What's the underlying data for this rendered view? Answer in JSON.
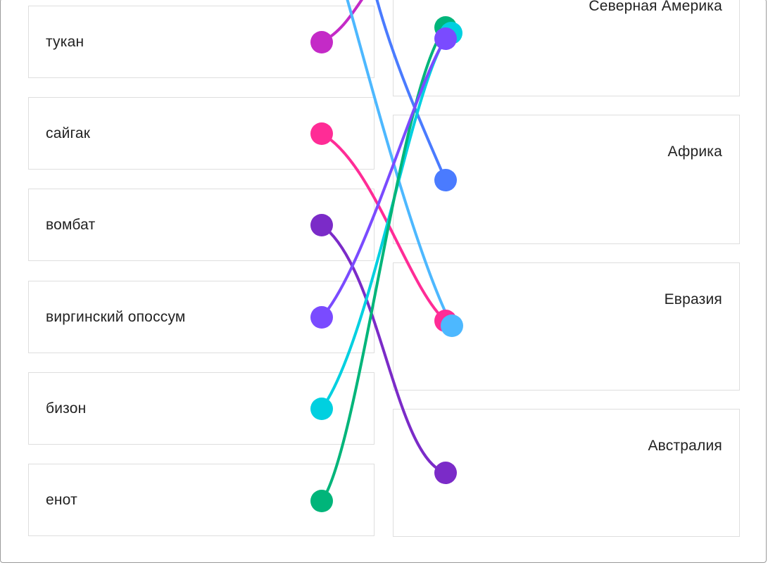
{
  "left_items": [
    {
      "id": "toucan",
      "label": "тукан"
    },
    {
      "id": "saiga",
      "label": "сайгак"
    },
    {
      "id": "wombat",
      "label": "вомбат"
    },
    {
      "id": "opossum",
      "label": "виргинский опоссум"
    },
    {
      "id": "bison",
      "label": "бизон"
    },
    {
      "id": "raccoon",
      "label": "енот"
    }
  ],
  "right_items": [
    {
      "id": "north-america",
      "label": "Северная Америка"
    },
    {
      "id": "africa",
      "label": "Африка"
    },
    {
      "id": "eurasia",
      "label": "Евразия"
    },
    {
      "id": "australia",
      "label": "Австралия"
    }
  ],
  "connections": [
    {
      "from": "toucan",
      "to": "offscreen-top",
      "color": "#c42ac7"
    },
    {
      "from": "saiga",
      "to": "eurasia",
      "color": "#ff2c96"
    },
    {
      "from": "wombat",
      "to": "australia",
      "color": "#7b2bc8"
    },
    {
      "from": "opossum",
      "to": "north-america",
      "color": "#7a4bff"
    },
    {
      "from": "bison",
      "to": "north-america",
      "color": "#00d0e0"
    },
    {
      "from": "raccoon",
      "to": "north-america",
      "color": "#00b57a"
    },
    {
      "from": "offscreen-top",
      "to": "africa",
      "color": "#4a7bff"
    },
    {
      "from": "offscreen-top",
      "to": "eurasia",
      "color": "#4db8ff"
    }
  ]
}
